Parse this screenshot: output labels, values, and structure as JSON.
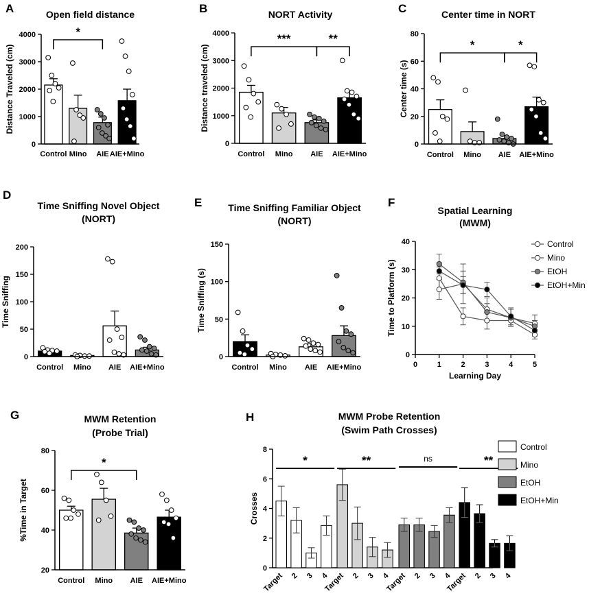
{
  "chart_data": [
    {
      "id": "A",
      "type": "bar",
      "title": "Open field distance",
      "ylabel": "Distance Traveled (cm)",
      "ylim": [
        0,
        4000
      ],
      "yticks": [
        0,
        1000,
        2000,
        3000,
        4000
      ],
      "categories": [
        "Control",
        "Mino",
        "AIE",
        "AIE+Mino"
      ],
      "values": [
        2150,
        1300,
        780,
        1580
      ],
      "errors": [
        230,
        480,
        200,
        420
      ],
      "fills": [
        "#ffffff",
        "#d3d3d3",
        "#808080",
        "#000000"
      ],
      "points": [
        [
          3150,
          2500,
          2200,
          2050,
          1950,
          1550
        ],
        [
          2950,
          1250,
          1050,
          950,
          100
        ],
        [
          1250,
          1100,
          950,
          700,
          600,
          400,
          300,
          200
        ],
        [
          3750,
          3200,
          2650,
          1800,
          1300,
          900,
          650,
          200
        ]
      ],
      "significance": [
        {
          "from": 0,
          "to": 2,
          "label": "*",
          "level": 3800
        }
      ]
    },
    {
      "id": "B",
      "type": "bar",
      "title": "NORT Activity",
      "ylabel": "Distance traveled (cm)",
      "ylim": [
        0,
        4000
      ],
      "yticks": [
        0,
        1000,
        2000,
        3000,
        4000
      ],
      "categories": [
        "Control",
        "Mino",
        "AIE",
        "AIE+Mino"
      ],
      "values": [
        1850,
        1100,
        750,
        1650
      ],
      "errors": [
        250,
        200,
        100,
        230
      ],
      "fills": [
        "#ffffff",
        "#d3d3d3",
        "#808080",
        "#000000"
      ],
      "points": [
        [
          2800,
          2300,
          1800,
          1500,
          1300,
          950
        ],
        [
          1400,
          1250,
          1050,
          700,
          550
        ],
        [
          1050,
          950,
          900,
          800,
          750,
          650,
          550,
          500
        ],
        [
          3000,
          1900,
          1850,
          1700,
          1600,
          1400,
          1050,
          900
        ]
      ],
      "significance": [
        {
          "from": 0,
          "to": 2,
          "label": "***",
          "level": 3500
        },
        {
          "from": 2,
          "to": 3,
          "label": "**",
          "level": 3500
        }
      ]
    },
    {
      "id": "C",
      "type": "bar",
      "title": "Center time in  NORT",
      "ylabel": "Center time (s)",
      "ylim": [
        0,
        80
      ],
      "yticks": [
        0,
        20,
        40,
        60,
        80
      ],
      "categories": [
        "Control",
        "Mino",
        "AIE",
        "AIE+Mino"
      ],
      "values": [
        25,
        9,
        4,
        27
      ],
      "errors": [
        7,
        7,
        2,
        7
      ],
      "fills": [
        "#ffffff",
        "#d3d3d3",
        "#808080",
        "#000000"
      ],
      "points": [
        [
          48,
          45,
          20,
          18,
          8,
          2
        ],
        [
          39,
          2,
          1,
          1
        ],
        [
          18,
          7,
          5,
          4,
          3,
          2,
          1,
          0
        ],
        [
          57,
          56,
          32,
          30,
          25,
          20,
          8,
          4
        ]
      ],
      "significance": [
        {
          "from": 0,
          "to": 2,
          "label": "*",
          "level": 66
        },
        {
          "from": 2,
          "to": 3,
          "label": "*",
          "level": 66
        }
      ]
    },
    {
      "id": "D",
      "type": "bar",
      "title": "Time Sniffing Novel Object",
      "subtitle": "(NORT)",
      "ylabel": "Time Sniffing",
      "ylim": [
        0,
        200
      ],
      "yticks": [
        0,
        50,
        100,
        150,
        200
      ],
      "categories": [
        "Control",
        "Mino",
        "AIE",
        "AIE+Mino"
      ],
      "values": [
        10,
        2,
        56,
        12
      ],
      "errors": [
        3,
        1,
        27,
        5
      ],
      "fills": [
        "#000000",
        "#ffffff",
        "#ffffff",
        "#808080"
      ],
      "points": [
        [
          16,
          12,
          11,
          10,
          9,
          6
        ],
        [
          3,
          2,
          1,
          1,
          0
        ],
        [
          178,
          173,
          50,
          35,
          30,
          8,
          5,
          3
        ],
        [
          36,
          30,
          18,
          15,
          12,
          10,
          5,
          3
        ]
      ],
      "significance": []
    },
    {
      "id": "E",
      "type": "bar",
      "title": "Time Sniffing Familiar Object",
      "subtitle": "(NORT)",
      "ylabel": "Time Sniffing (s)",
      "ylim": [
        0,
        150
      ],
      "yticks": [
        0,
        50,
        100,
        150
      ],
      "categories": [
        "Control",
        "Mino",
        "AIE",
        "AIE+Mino"
      ],
      "values": [
        20,
        2,
        13,
        28
      ],
      "errors": [
        9,
        1,
        4,
        13
      ],
      "fills": [
        "#000000",
        "#ffffff",
        "#ffffff",
        "#808080"
      ],
      "points": [
        [
          59,
          34,
          15,
          10,
          5,
          3
        ],
        [
          4,
          3,
          2,
          1,
          0
        ],
        [
          24,
          22,
          18,
          16,
          14,
          10,
          8,
          6
        ],
        [
          108,
          65,
          34,
          30,
          20,
          12,
          8,
          5
        ]
      ],
      "significance": []
    },
    {
      "id": "F",
      "type": "line",
      "title": "Spatial Learning",
      "subtitle": "(MWM)",
      "xlabel": "Learning Day",
      "ylabel": "Time to Platform (s)",
      "xlim": [
        0,
        5
      ],
      "xticks": [
        0,
        1,
        2,
        3,
        4,
        5
      ],
      "ylim": [
        0,
        40
      ],
      "yticks": [
        0,
        10,
        20,
        30,
        40
      ],
      "x": [
        1,
        2,
        3,
        4,
        5
      ],
      "series": [
        {
          "name": "Control",
          "values": [
            27,
            13.5,
            12,
            12,
            7
          ],
          "errors": [
            4,
            3,
            3,
            2,
            1.5
          ],
          "fill": "#ffffff"
        },
        {
          "name": "Mino",
          "values": [
            23,
            25,
            16,
            13,
            11
          ],
          "errors": [
            3.5,
            7,
            4,
            3,
            3
          ],
          "fill": "#ffffff"
        },
        {
          "name": "EtOH",
          "values": [
            32,
            25.5,
            15,
            13,
            10
          ],
          "errors": [
            3.5,
            4,
            3,
            3,
            2
          ],
          "fill": "#808080"
        },
        {
          "name": "EtOH+Min",
          "values": [
            29.5,
            24.5,
            23,
            13.5,
            8.5
          ],
          "errors": [
            3,
            3,
            2.5,
            3,
            2
          ],
          "fill": "#000000"
        }
      ]
    },
    {
      "id": "G",
      "type": "bar",
      "title": "MWM Retention",
      "subtitle": "(Probe Trial)",
      "ylabel": "%Time in Target",
      "ylim": [
        20,
        80
      ],
      "yticks": [
        20,
        40,
        60,
        80
      ],
      "categories": [
        "Control",
        "Mino",
        "AIE",
        "AIE+Mino"
      ],
      "values": [
        50,
        55.5,
        38.5,
        46.5
      ],
      "errors": [
        2,
        5.5,
        2.5,
        3.5
      ],
      "fills": [
        "#ffffff",
        "#d3d3d3",
        "#808080",
        "#000000"
      ],
      "points": [
        [
          56,
          55,
          50,
          48,
          46,
          46
        ],
        [
          68,
          64,
          55,
          47,
          45
        ],
        [
          45,
          44,
          41,
          40,
          38,
          36,
          35,
          34
        ],
        [
          58,
          55,
          50,
          46,
          44,
          43,
          36
        ]
      ],
      "significance": [
        {
          "from": 0,
          "to": 2,
          "label": "*",
          "level": 70
        }
      ]
    },
    {
      "id": "H",
      "type": "bar",
      "title": "MWM Probe Retention",
      "subtitle": "(Swim Path Crosses)",
      "ylabel": "Crosses",
      "ylim": [
        0,
        8
      ],
      "yticks": [
        0,
        2,
        4,
        6,
        8
      ],
      "categories": [
        "Target",
        "2",
        "3",
        "4"
      ],
      "series": [
        {
          "name": "Control",
          "values": [
            4.5,
            3.2,
            1.0,
            2.85
          ],
          "errors": [
            1.0,
            0.85,
            0.35,
            0.65
          ],
          "fill": "#ffffff",
          "sig": "*"
        },
        {
          "name": "Mino",
          "values": [
            5.6,
            3.0,
            1.4,
            1.2
          ],
          "errors": [
            1.05,
            1.1,
            0.65,
            0.5
          ],
          "fill": "#d3d3d3",
          "sig": "**"
        },
        {
          "name": "EtOH",
          "values": [
            2.9,
            2.9,
            2.45,
            3.55
          ],
          "errors": [
            0.45,
            0.45,
            0.4,
            0.5
          ],
          "fill": "#808080",
          "sig": "ns"
        },
        {
          "name": "EtOH+Min",
          "values": [
            4.4,
            3.65,
            1.65,
            1.65
          ],
          "errors": [
            1.0,
            0.6,
            0.25,
            0.5
          ],
          "fill": "#000000",
          "sig": "**"
        }
      ]
    }
  ]
}
